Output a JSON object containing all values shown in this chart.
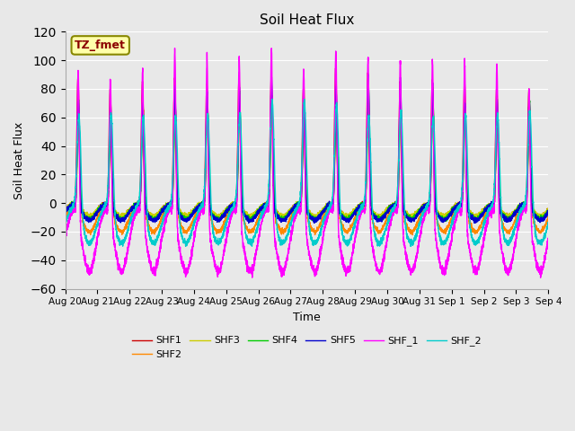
{
  "title": "Soil Heat Flux",
  "xlabel": "Time",
  "ylabel": "Soil Heat Flux",
  "ylim": [
    -60,
    120
  ],
  "yticks": [
    -60,
    -40,
    -20,
    0,
    20,
    40,
    60,
    80,
    100,
    120
  ],
  "background_color": "#e8e8e8",
  "plot_bg_color": "#e8e8e8",
  "legend_label": "TZ_fmet",
  "colors": {
    "SHF1": "#cc0000",
    "SHF2": "#ff8800",
    "SHF3": "#cccc00",
    "SHF4": "#00cc00",
    "SHF5": "#0000cc",
    "SHF_1": "#ff00ff",
    "SHF_2": "#00cccc"
  },
  "n_days": 15,
  "ppd": 288,
  "x_tick_labels": [
    "Aug 20",
    "Aug 21",
    "Aug 22",
    "Aug 23",
    "Aug 24",
    "Aug 25",
    "Aug 26",
    "Aug 27",
    "Aug 28",
    "Aug 29",
    "Aug 30",
    "Aug 31",
    "Sep 1",
    "Sep 2",
    "Sep 3",
    "Sep 4"
  ]
}
